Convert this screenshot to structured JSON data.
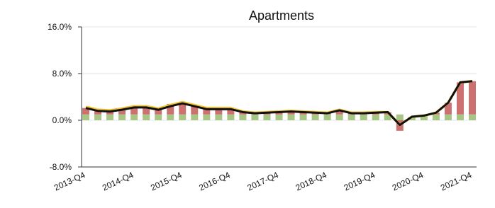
{
  "chart_data": {
    "type": "bar-line",
    "title": "Apartments",
    "categories": [
      "2013-Q4",
      null,
      null,
      null,
      "2014-Q4",
      null,
      null,
      null,
      "2015-Q4",
      null,
      null,
      null,
      "2016-Q4",
      null,
      null,
      null,
      "2017-Q4",
      null,
      null,
      null,
      "2018-Q4",
      null,
      null,
      null,
      "2019-Q4",
      null,
      null,
      null,
      "2020-Q4",
      null,
      null,
      null,
      "2021-Q4"
    ],
    "series": [
      {
        "kind": "bar",
        "color": "#a7c686",
        "values": [
          1,
          1,
          1,
          1,
          1,
          1,
          1,
          1,
          1,
          1,
          1,
          1,
          1,
          1,
          1,
          1,
          1,
          1,
          1,
          1,
          1,
          1,
          1,
          1,
          1,
          1,
          1,
          0.6,
          0.8,
          1,
          1,
          1,
          1
        ]
      },
      {
        "kind": "bar",
        "color": "#cd7070",
        "values": [
          1.1,
          0.6,
          0.5,
          0.8,
          1.2,
          1.2,
          0.8,
          1.8,
          1.9,
          1.4,
          0.9,
          0.9,
          0.9,
          0.4,
          0.2,
          0.3,
          0.4,
          0.5,
          0.4,
          0.3,
          0.2,
          0.7,
          0.2,
          0.2,
          0.3,
          0.4,
          -1.8,
          0,
          0,
          0.3,
          2,
          5.5,
          5.7
        ]
      },
      {
        "kind": "line",
        "color": "#f2c12e",
        "values": [
          2.3,
          1.8,
          1.7,
          2,
          2.4,
          2.4,
          2,
          2.6,
          3.1,
          2.6,
          2.1,
          2.1,
          2.1,
          1.5,
          1.3,
          1.4,
          1.5,
          1.6,
          1.5,
          1.4,
          1.3,
          1.8,
          1.3,
          1.3,
          1.4,
          1.4,
          -0.8,
          0.6,
          0.8,
          1.3,
          3,
          6.5,
          6.7
        ]
      },
      {
        "kind": "line",
        "color": "#111111",
        "values": [
          2.1,
          1.6,
          1.5,
          1.8,
          2.2,
          2.2,
          1.8,
          2.4,
          2.9,
          2.4,
          1.9,
          1.9,
          1.9,
          1.4,
          1.2,
          1.3,
          1.4,
          1.5,
          1.4,
          1.3,
          1.2,
          1.7,
          1.2,
          1.2,
          1.3,
          1.4,
          -0.8,
          0.6,
          0.8,
          1.3,
          3,
          6.5,
          6.7
        ]
      }
    ],
    "ylim": [
      -8,
      16
    ],
    "yticks": [
      {
        "value": -8,
        "label": "-8.0%"
      },
      {
        "value": 0,
        "label": "0.0%"
      },
      {
        "value": 8,
        "label": "8.0%"
      },
      {
        "value": 16,
        "label": "16.0%"
      }
    ],
    "grid": true
  }
}
